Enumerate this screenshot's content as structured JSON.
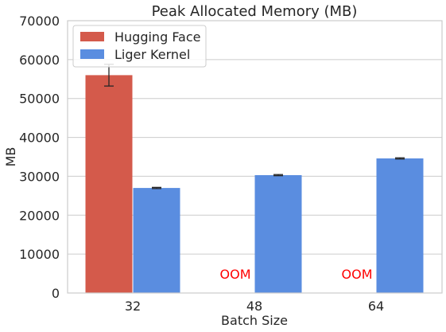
{
  "chart_data": {
    "type": "bar",
    "title": "Peak Allocated Memory (MB)",
    "xlabel": "Batch Size",
    "ylabel": "MB",
    "ylim": [
      0,
      70000
    ],
    "yticks": [
      0,
      10000,
      20000,
      30000,
      40000,
      50000,
      60000,
      70000
    ],
    "categories": [
      "32",
      "48",
      "64"
    ],
    "grid": "y",
    "legend_position": "top-left",
    "series": [
      {
        "name": "Hugging Face",
        "color": "#d45a4b",
        "values": [
          56000,
          null,
          null
        ],
        "errors": [
          2800,
          null,
          null
        ]
      },
      {
        "name": "Liger Kernel",
        "color": "#5a8de0",
        "values": [
          27000,
          30300,
          34600
        ],
        "errors": [
          150,
          150,
          150
        ]
      }
    ],
    "annotations": [
      {
        "category": "48",
        "series": "Hugging Face",
        "text": "OOM",
        "color": "#ff0000"
      },
      {
        "category": "64",
        "series": "Hugging Face",
        "text": "OOM",
        "color": "#ff0000"
      }
    ]
  }
}
